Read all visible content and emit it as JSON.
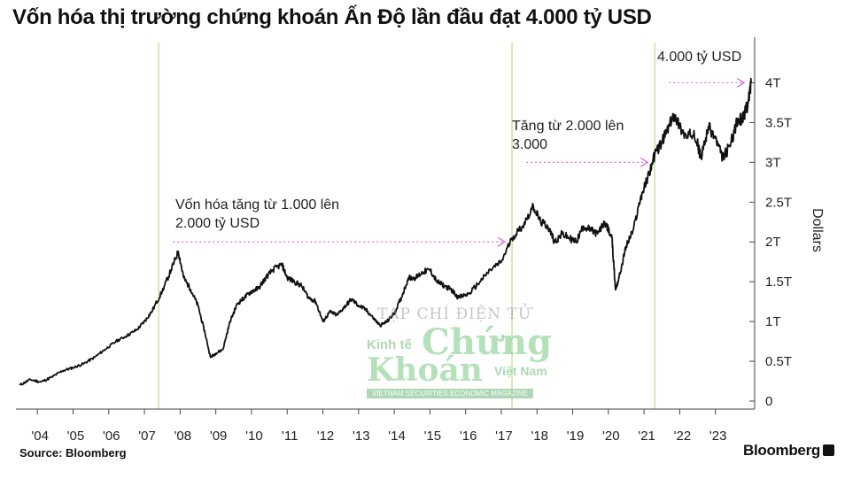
{
  "title": "Vốn hóa thị trường chứng khoán Ấn Độ lần đầu đạt 4.000 tỷ USD",
  "source": "Source:  Bloomberg",
  "brand": "Bloomberg",
  "watermark": {
    "top": "TẠP CHÍ ĐIỆN TỬ",
    "kinh_te": "Kinh tế",
    "chung": "Chứng",
    "khoan": "Khoán",
    "viet_nam": "Việt Nam",
    "magazine": "VIETNAM SECURITIES ECONOMIC MAGAZINE"
  },
  "colors": {
    "line": "#111111",
    "vline": "#c4d98e",
    "annotation_arrow": "#d96fd9",
    "grid": "#bbbbbb"
  },
  "chart_data": {
    "type": "line",
    "ylabel": "Dollars",
    "ylim": [
      -0.1,
      4.35
    ],
    "xlim": [
      2003.4,
      2024.0
    ],
    "yticks": [
      0,
      0.5,
      1,
      1.5,
      2,
      2.5,
      3,
      3.5,
      4
    ],
    "ytick_labels": [
      "0",
      "0.5T",
      "1T",
      "1.5T",
      "2T",
      "2.5T",
      "3T",
      "3.5T",
      "4T"
    ],
    "xticks": [
      2004,
      2005,
      2006,
      2007,
      2008,
      2009,
      2010,
      2011,
      2012,
      2013,
      2014,
      2015,
      2016,
      2017,
      2018,
      2019,
      2020,
      2021,
      2022,
      2023
    ],
    "xtick_labels": [
      "'04",
      "'05",
      "'06",
      "'07",
      "'08",
      "'09",
      "'10",
      "'11",
      "'12",
      "'13",
      "'14",
      "'15",
      "'16",
      "'17",
      "'18",
      "'19",
      "'20",
      "'21",
      "'22",
      "'23"
    ],
    "milestone_lines": [
      2007.4,
      2017.3,
      2021.3
    ],
    "series": [
      {
        "name": "",
        "x": [
          2003.5,
          2003.8,
          2004.1,
          2004.4,
          2004.7,
          2005.0,
          2005.3,
          2005.6,
          2005.9,
          2006.2,
          2006.5,
          2006.8,
          2007.0,
          2007.2,
          2007.5,
          2007.75,
          2007.95,
          2008.1,
          2008.3,
          2008.5,
          2008.7,
          2008.85,
          2009.0,
          2009.2,
          2009.4,
          2009.6,
          2009.8,
          2010.0,
          2010.2,
          2010.4,
          2010.6,
          2010.85,
          2011.0,
          2011.2,
          2011.4,
          2011.6,
          2011.8,
          2012.0,
          2012.2,
          2012.4,
          2012.6,
          2012.8,
          2013.0,
          2013.2,
          2013.4,
          2013.6,
          2013.8,
          2014.0,
          2014.2,
          2014.4,
          2014.6,
          2014.8,
          2015.0,
          2015.2,
          2015.4,
          2015.6,
          2015.8,
          2016.1,
          2016.4,
          2016.7,
          2017.0,
          2017.3,
          2017.6,
          2017.9,
          2018.1,
          2018.3,
          2018.5,
          2018.7,
          2018.9,
          2019.1,
          2019.3,
          2019.5,
          2019.7,
          2019.9,
          2020.1,
          2020.2,
          2020.3,
          2020.5,
          2020.7,
          2020.9,
          2021.1,
          2021.3,
          2021.5,
          2021.7,
          2021.85,
          2022.0,
          2022.2,
          2022.4,
          2022.6,
          2022.8,
          2023.0,
          2023.2,
          2023.4,
          2023.6,
          2023.75,
          2023.85,
          2023.92,
          2024.0
        ],
        "y": [
          0.2,
          0.27,
          0.24,
          0.3,
          0.38,
          0.42,
          0.47,
          0.55,
          0.65,
          0.75,
          0.82,
          0.9,
          1.0,
          1.12,
          1.38,
          1.65,
          1.88,
          1.55,
          1.4,
          1.2,
          0.85,
          0.55,
          0.6,
          0.65,
          1.0,
          1.22,
          1.3,
          1.38,
          1.42,
          1.55,
          1.65,
          1.72,
          1.55,
          1.5,
          1.45,
          1.3,
          1.25,
          1.0,
          1.12,
          1.08,
          1.18,
          1.28,
          1.2,
          1.15,
          1.05,
          0.95,
          1.0,
          1.1,
          1.3,
          1.55,
          1.55,
          1.62,
          1.65,
          1.5,
          1.45,
          1.4,
          1.3,
          1.35,
          1.5,
          1.65,
          1.75,
          2.05,
          2.2,
          2.45,
          2.25,
          2.2,
          2.0,
          2.1,
          2.05,
          2.0,
          2.2,
          2.15,
          2.1,
          2.25,
          2.05,
          1.4,
          1.55,
          1.95,
          2.15,
          2.55,
          2.8,
          3.1,
          3.25,
          3.45,
          3.6,
          3.45,
          3.3,
          3.4,
          3.05,
          3.45,
          3.3,
          3.05,
          3.2,
          3.5,
          3.55,
          3.65,
          3.75,
          4.0
        ]
      }
    ],
    "annotations": [
      {
        "lines": [
          "Vốn hóa tăng từ 1.000 lên",
          "2.000 tỷ USD"
        ],
        "arrow_x": [
          2007.4,
          2017.3
        ],
        "arrow_y": 2.0
      },
      {
        "lines": [
          "Tăng từ 2.000 lên",
          "3.000"
        ],
        "arrow_x": [
          2017.3,
          2021.3
        ],
        "arrow_y": 3.0
      },
      {
        "lines": [
          "4.000 tỷ USD"
        ],
        "arrow_x": [
          2021.3,
          2024.0
        ],
        "arrow_y": 4.0
      }
    ]
  }
}
